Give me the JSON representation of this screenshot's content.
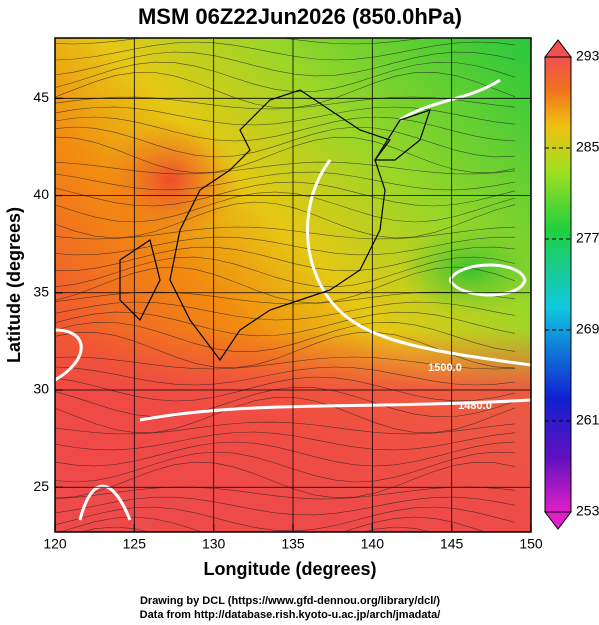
{
  "title": "MSM 06Z22Jun2026 (850.0hPa)",
  "xaxis": {
    "label": "Longitude (degrees)",
    "lim": [
      120,
      150
    ],
    "ticks": [
      120,
      125,
      130,
      135,
      140,
      145,
      150
    ]
  },
  "yaxis": {
    "label": "Latitude  (degrees)",
    "lim": [
      22.7,
      48.1
    ],
    "ticks": [
      25,
      30,
      35,
      40,
      45
    ]
  },
  "colorbar": {
    "lim": [
      253,
      293
    ],
    "ticks": [
      253,
      261,
      269,
      277,
      285,
      293
    ]
  },
  "contour_labels": [
    "1500.0",
    "1480.0"
  ],
  "footer": [
    "Drawing by DCL (https://www.gfd-dennou.org/library/dcl/)",
    "Data from http://database.rish.kyoto-u.ac.jp/arch/jmadata/"
  ]
}
